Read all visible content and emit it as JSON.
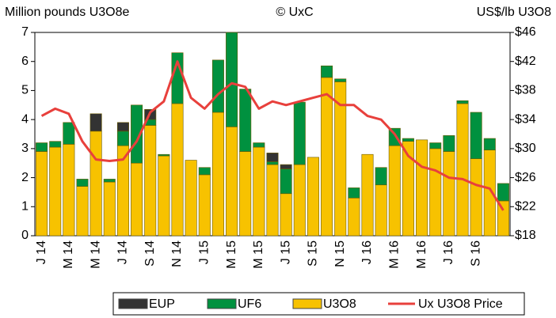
{
  "chart_data": {
    "type": "bar",
    "stacked": true,
    "title": "© UxC",
    "y_label": "Million pounds U3O8e",
    "y2_label": "US$/lb U3O8",
    "categories": [
      "J 14",
      null,
      "M 14",
      null,
      "M 14",
      null,
      "J 14",
      null,
      "S 14",
      null,
      "N 14",
      null,
      "J 15",
      null,
      "M 15",
      null,
      "M 15",
      null,
      "J 15",
      null,
      "S 15",
      null,
      "N 15",
      null,
      "J 16",
      null,
      "M 16",
      null,
      "M 16",
      null,
      "J 16",
      null,
      "S 16",
      null,
      null
    ],
    "ylim": [
      0,
      7
    ],
    "yticks": [
      0,
      1,
      2,
      3,
      4,
      5,
      6,
      7
    ],
    "y2lim": [
      18,
      46
    ],
    "y2ticks": [
      {
        "value": 18,
        "label": "$18"
      },
      {
        "value": 22,
        "label": "$22"
      },
      {
        "value": 26,
        "label": "$26"
      },
      {
        "value": 30,
        "label": "$30"
      },
      {
        "value": 34,
        "label": "$34"
      },
      {
        "value": 38,
        "label": "$38"
      },
      {
        "value": 42,
        "label": "$42"
      },
      {
        "value": 46,
        "label": "$46"
      }
    ],
    "legend": "bottom",
    "series": [
      {
        "name": "EUP",
        "type": "bar",
        "color": "#333333",
        "values": [
          0,
          0,
          0,
          0,
          0.6,
          0,
          0.3,
          0,
          0.35,
          0,
          0,
          0,
          0,
          0,
          0,
          0,
          0,
          0.3,
          0.15,
          0,
          0,
          0,
          0,
          0,
          0,
          0,
          0,
          0,
          0,
          0,
          0,
          0,
          0,
          0,
          0
        ]
      },
      {
        "name": "UF6",
        "type": "bar",
        "color": "#00913f",
        "values": [
          0.3,
          0.2,
          0.75,
          0.25,
          0,
          0.1,
          0.5,
          2.0,
          0.2,
          0.05,
          1.75,
          0,
          0.25,
          1.8,
          3.25,
          2.15,
          0.15,
          0.1,
          0.85,
          2.15,
          0,
          0.4,
          0.1,
          0.35,
          0,
          0.6,
          0.6,
          0.1,
          0,
          0.2,
          0.55,
          0.1,
          1.6,
          0.4,
          0.6
        ]
      },
      {
        "name": "U3O8",
        "type": "bar",
        "color": "#f7c200",
        "values": [
          2.9,
          3.05,
          3.15,
          1.7,
          3.6,
          1.85,
          3.1,
          2.5,
          3.8,
          2.75,
          4.55,
          2.6,
          2.1,
          4.25,
          3.75,
          2.9,
          3.05,
          2.45,
          1.45,
          2.45,
          2.7,
          5.45,
          5.3,
          1.3,
          2.8,
          1.75,
          3.1,
          3.25,
          3.3,
          3.0,
          2.9,
          4.55,
          2.65,
          2.95,
          1.2
        ]
      },
      {
        "name": "Ux U3O8 Price",
        "type": "line",
        "axis": "y2",
        "color": "#e8403c",
        "values": [
          34.5,
          35.5,
          34.8,
          31,
          28.5,
          28.3,
          28.5,
          31,
          35,
          36.5,
          42,
          37,
          35.5,
          37.5,
          39,
          38.5,
          35.5,
          36.5,
          36,
          36.5,
          37,
          37.5,
          36,
          36,
          34.5,
          34,
          32,
          29,
          27.5,
          27,
          26,
          25.8,
          25,
          24.5,
          21.5
        ]
      }
    ]
  }
}
